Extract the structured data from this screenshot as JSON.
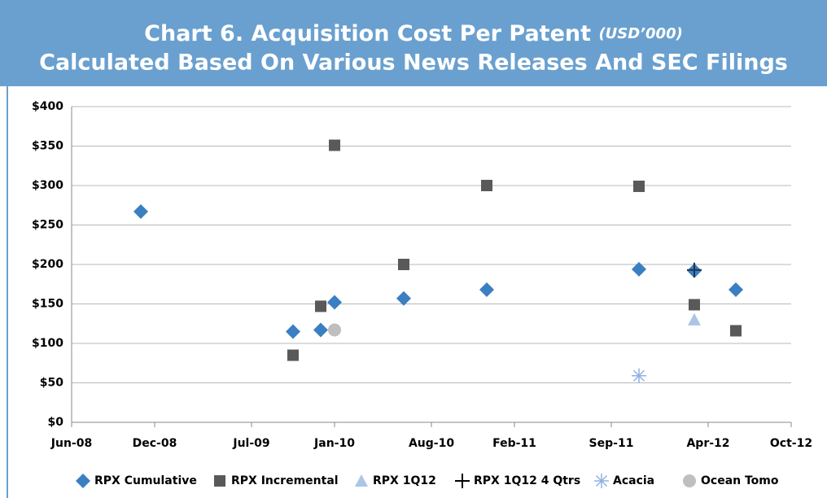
{
  "chart_data": {
    "type": "scatter",
    "title": "Chart 6. Acquisition Cost Per Patent",
    "title_unit": "(USD’000)",
    "subtitle": "Calculated Based On Various News Releases And SEC Filings",
    "xlim": [
      "2008-06",
      "2012-10"
    ],
    "xticks": [
      {
        "value": "2008-06",
        "label": "Jun-08"
      },
      {
        "value": "2008-12",
        "label": "Dec-08"
      },
      {
        "value": "2009-07",
        "label": "Jul-09"
      },
      {
        "value": "2010-01",
        "label": "Jan-10"
      },
      {
        "value": "2010-08",
        "label": "Aug-10"
      },
      {
        "value": "2011-02",
        "label": "Feb-11"
      },
      {
        "value": "2011-09",
        "label": "Sep-11"
      },
      {
        "value": "2012-04",
        "label": "Apr-12"
      },
      {
        "value": "2012-10",
        "label": "Oct-12"
      }
    ],
    "ylim": [
      0,
      400
    ],
    "yticks": [
      {
        "value": 0,
        "label": "$0"
      },
      {
        "value": 50,
        "label": "$50"
      },
      {
        "value": 100,
        "label": "$100"
      },
      {
        "value": 150,
        "label": "$150"
      },
      {
        "value": 200,
        "label": "$200"
      },
      {
        "value": 250,
        "label": "$250"
      },
      {
        "value": 300,
        "label": "$300"
      },
      {
        "value": 350,
        "label": "$350"
      },
      {
        "value": 400,
        "label": "$400"
      }
    ],
    "grid": true,
    "legend": "bottom",
    "series": [
      {
        "name": "RPX Cumulative",
        "color": "#3a7fc1",
        "marker": "diamond",
        "x": [
          "2008-11",
          "2009-10",
          "2009-12",
          "2010-01",
          "2010-06",
          "2010-12",
          "2011-11",
          "2012-03",
          "2012-06"
        ],
        "values": [
          267,
          115,
          117,
          152,
          157,
          168,
          194,
          192,
          168
        ]
      },
      {
        "name": "RPX Incremental",
        "color": "#595959",
        "marker": "square",
        "x": [
          "2009-10",
          "2009-12",
          "2010-01",
          "2010-06",
          "2010-12",
          "2011-11",
          "2012-03",
          "2012-06"
        ],
        "values": [
          85,
          147,
          351,
          200,
          300,
          299,
          149,
          116
        ]
      },
      {
        "name": "RPX 1Q12",
        "color": "#a9c6e6",
        "marker": "triangle",
        "x": [
          "2012-03"
        ],
        "values": [
          130
        ]
      },
      {
        "name": "RPX 1Q12 4 Qtrs",
        "color": "#1f3550",
        "marker": "plus",
        "x": [
          "2012-03"
        ],
        "values": [
          193
        ]
      },
      {
        "name": "Acacia",
        "color": "#8db3e2",
        "marker": "asterisk",
        "x": [
          "2011-11"
        ],
        "values": [
          59
        ]
      },
      {
        "name": "Ocean Tomo",
        "color": "#bfbfbf",
        "marker": "circle",
        "x": [
          "2010-01"
        ],
        "values": [
          117
        ]
      }
    ]
  }
}
